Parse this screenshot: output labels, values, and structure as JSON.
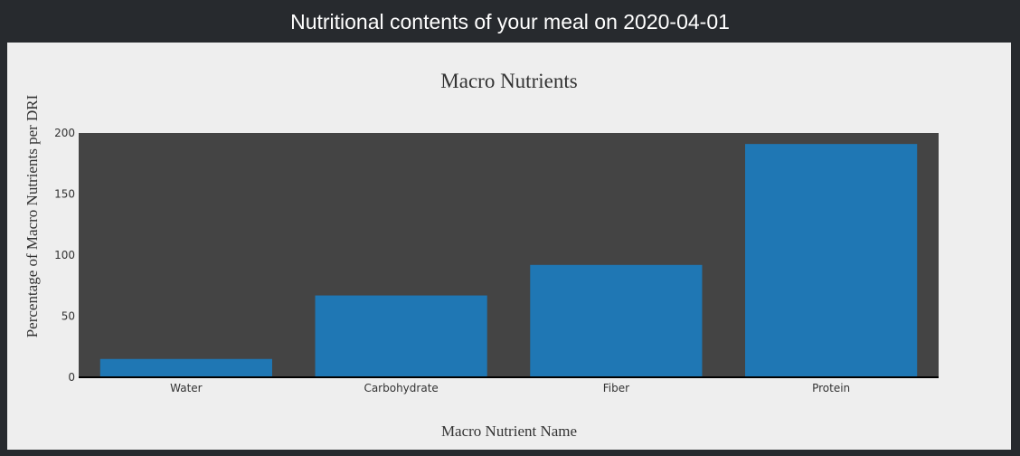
{
  "header": {
    "title": "Nutritional contents of your meal on 2020-04-01"
  },
  "colors": {
    "page_background": "#272a2e",
    "panel_background": "#eeeeee",
    "plot_background": "#444444",
    "bar_color": "#1f77b4"
  },
  "chart_data": {
    "type": "bar",
    "title": "Macro Nutrients",
    "xlabel": "Macro Nutrient Name",
    "ylabel": "Percentage of Macro Nutrients per DRI",
    "categories": [
      "Water",
      "Carbohydrate",
      "Fiber",
      "Protein"
    ],
    "values": [
      15,
      67,
      92,
      191
    ],
    "ylim": [
      0,
      200
    ],
    "yticks": [
      0,
      50,
      100,
      150,
      200
    ],
    "grid": false,
    "legend": "none"
  }
}
